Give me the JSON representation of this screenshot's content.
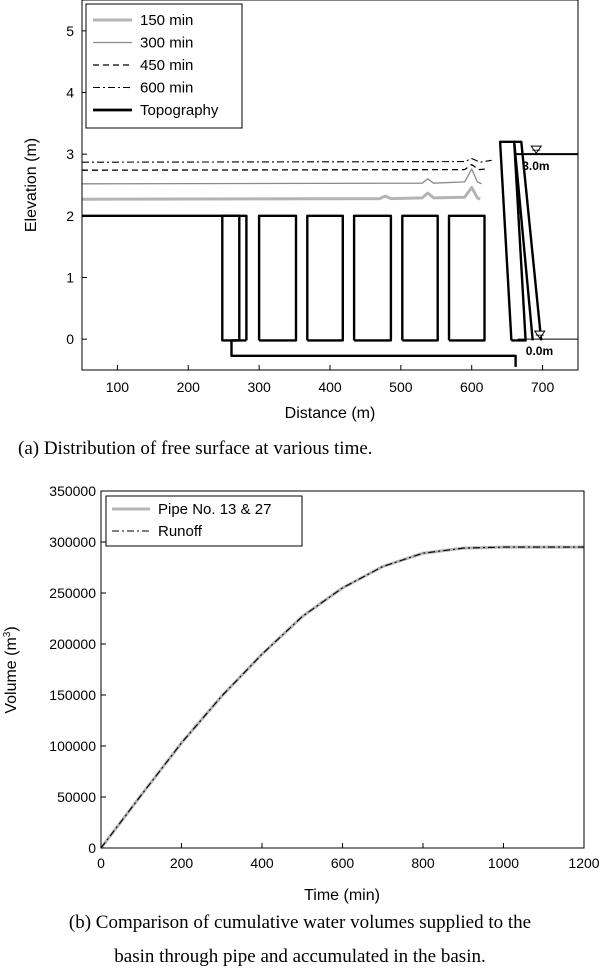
{
  "chart_data": [
    {
      "type": "line",
      "title": "",
      "xlabel": "Distance (m)",
      "ylabel": "Elevation (m)",
      "xlim": [
        50,
        750
      ],
      "ylim": [
        -0.5,
        5.5
      ],
      "xticks": [
        100,
        200,
        300,
        400,
        500,
        600,
        700
      ],
      "yticks": [
        0,
        1,
        2,
        3,
        4,
        5
      ],
      "legend_position": "top-left",
      "series": [
        {
          "name": "150 min",
          "style": "thick-light-gray",
          "color": "#b4b4b4",
          "points": [
            [
              50,
              2.27
            ],
            [
              470,
              2.28
            ],
            [
              478,
              2.32
            ],
            [
              486,
              2.28
            ],
            [
              530,
              2.29
            ],
            [
              538,
              2.37
            ],
            [
              546,
              2.29
            ],
            [
              590,
              2.3
            ],
            [
              600,
              2.46
            ],
            [
              608,
              2.29
            ],
            [
              612,
              2.27
            ]
          ]
        },
        {
          "name": "300 min",
          "style": "thin-gray",
          "color": "#8a8a8a",
          "points": [
            [
              50,
              2.52
            ],
            [
              530,
              2.53
            ],
            [
              538,
              2.6
            ],
            [
              546,
              2.53
            ],
            [
              590,
              2.55
            ],
            [
              600,
              2.76
            ],
            [
              608,
              2.55
            ],
            [
              614,
              2.52
            ]
          ]
        },
        {
          "name": "450 min",
          "style": "dashed",
          "color": "#000000",
          "points": [
            [
              50,
              2.74
            ],
            [
              590,
              2.75
            ],
            [
              600,
              2.83
            ],
            [
              610,
              2.75
            ],
            [
              620,
              2.76
            ]
          ]
        },
        {
          "name": "600 min",
          "style": "dash-dot",
          "color": "#000000",
          "points": [
            [
              50,
              2.87
            ],
            [
              590,
              2.88
            ],
            [
              600,
              2.93
            ],
            [
              612,
              2.87
            ],
            [
              628,
              2.9
            ]
          ]
        },
        {
          "name": "Topography",
          "style": "thick-black",
          "color": "#000000"
        }
      ],
      "topography": [
        [
          [
            50,
            2.0
          ],
          [
            272,
            2.0
          ],
          [
            272,
            -0.02
          ],
          [
            261,
            -0.02
          ],
          [
            261,
            -0.27
          ],
          [
            662,
            -0.27
          ],
          [
            662,
            -0.45
          ]
        ],
        [
          [
            282,
            -0.02
          ],
          [
            282,
            2.0
          ],
          [
            248,
            2.0
          ],
          [
            248,
            -0.02
          ],
          [
            282,
            -0.02
          ]
        ],
        [
          [
            300,
            -0.02
          ],
          [
            300,
            2.0
          ],
          [
            352,
            2.0
          ],
          [
            352,
            -0.02
          ],
          [
            300,
            -0.02
          ]
        ],
        [
          [
            368,
            -0.02
          ],
          [
            368,
            2.0
          ],
          [
            418,
            2.0
          ],
          [
            418,
            -0.02
          ],
          [
            368,
            -0.02
          ]
        ],
        [
          [
            434,
            -0.02
          ],
          [
            434,
            2.0
          ],
          [
            486,
            2.0
          ],
          [
            486,
            -0.02
          ],
          [
            434,
            -0.02
          ]
        ],
        [
          [
            502,
            -0.02
          ],
          [
            502,
            2.0
          ],
          [
            552,
            2.0
          ],
          [
            552,
            -0.02
          ],
          [
            502,
            -0.02
          ]
        ],
        [
          [
            568,
            -0.02
          ],
          [
            568,
            2.0
          ],
          [
            618,
            2.0
          ],
          [
            618,
            -0.02
          ],
          [
            568,
            -0.02
          ]
        ],
        [
          [
            656,
            -0.02
          ],
          [
            640,
            3.2
          ],
          [
            660,
            3.2
          ],
          [
            676,
            -0.02
          ],
          [
            656,
            -0.02
          ]
        ],
        [
          [
            686,
            -0.02
          ],
          [
            660,
            3.2
          ],
          [
            670,
            3.2
          ],
          [
            698,
            -0.02
          ]
        ]
      ],
      "water_levels": [
        {
          "label": "3.0m",
          "value": 3.0,
          "x_from": 660,
          "x_to": 750
        },
        {
          "label": "0.0m",
          "value": 0.0,
          "x_from": 665,
          "x_to": 750
        }
      ]
    },
    {
      "type": "line",
      "title": "",
      "xlabel": "Time (min)",
      "ylabel_main": "Volume (m",
      "ylabel_sup": "3",
      "ylabel_tail": ")",
      "xlim": [
        0,
        1200
      ],
      "ylim": [
        0,
        350000
      ],
      "xticks": [
        0,
        200,
        400,
        600,
        800,
        1000,
        1200
      ],
      "yticks": [
        0,
        50000,
        100000,
        150000,
        200000,
        250000,
        300000,
        350000
      ],
      "legend_position": "top-left",
      "series": [
        {
          "name": "Pipe No. 13 & 27",
          "style": "thick-light-gray",
          "color": "#b4b4b4",
          "x": [
            0,
            100,
            200,
            300,
            400,
            500,
            600,
            700,
            800,
            900,
            1000,
            1100,
            1200
          ],
          "values": [
            0,
            52000,
            103000,
            149000,
            190000,
            227000,
            255000,
            276000,
            289000,
            294000,
            295000,
            295000,
            295000
          ]
        },
        {
          "name": "Runoff",
          "style": "dash-dot",
          "color": "#000000",
          "x": [
            0,
            100,
            200,
            300,
            400,
            500,
            600,
            700,
            800,
            900,
            1000,
            1100,
            1200
          ],
          "values": [
            0,
            52000,
            103000,
            149000,
            190000,
            227000,
            255000,
            276000,
            289000,
            294000,
            295000,
            295000,
            295000
          ]
        }
      ]
    }
  ],
  "captions": {
    "a": "(a) Distribution of free surface at various time.",
    "b_line1": "(b) Comparison of cumulative water volumes supplied to the",
    "b_line2": "basin through pipe and accumulated in the basin."
  }
}
